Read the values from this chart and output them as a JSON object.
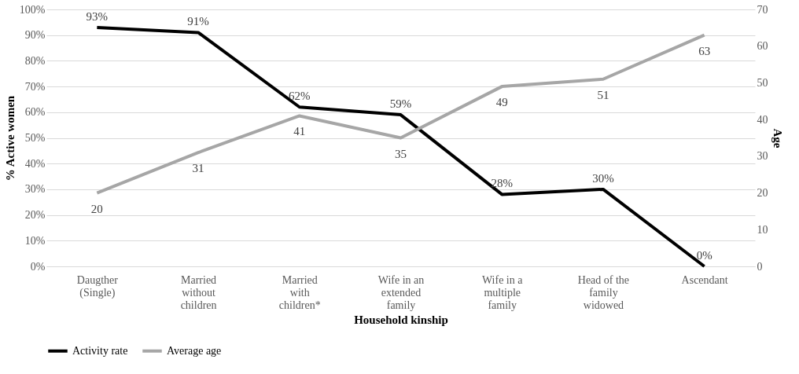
{
  "chart_data": {
    "type": "line",
    "xlabel": "Household kinship",
    "ylabel": "% Active women",
    "y2label": "Age",
    "categories": [
      "Daugther (Single)",
      "Married without children",
      "Married with children*",
      "Wife in an extended family",
      "Wife in a multiple family",
      "Head of the family widowed",
      "Ascendant"
    ],
    "series": [
      {
        "name": "Activity rate",
        "color": "#000000",
        "values": [
          93,
          91,
          62,
          59,
          28,
          30,
          0
        ],
        "value_labels": [
          "93%",
          "91%",
          "62%",
          "59%",
          "28%",
          "30%",
          "0%"
        ]
      },
      {
        "name": "Average age",
        "color": "#a6a6a6",
        "values": [
          20,
          31,
          41,
          35,
          49,
          51,
          63
        ],
        "axis": "y2"
      }
    ],
    "ylim": [
      0,
      100
    ],
    "yticks": [
      {
        "value": 0,
        "label": "0%"
      },
      {
        "value": 10,
        "label": "10%"
      },
      {
        "value": 20,
        "label": "20%"
      },
      {
        "value": 30,
        "label": "30%"
      },
      {
        "value": 40,
        "label": "40%"
      },
      {
        "value": 50,
        "label": "50%"
      },
      {
        "value": 60,
        "label": "60%"
      },
      {
        "value": 70,
        "label": "70%"
      },
      {
        "value": 80,
        "label": "80%"
      },
      {
        "value": 90,
        "label": "90%"
      },
      {
        "value": 100,
        "label": "100%"
      }
    ],
    "y2lim": [
      0,
      70
    ],
    "y2ticks": [
      0,
      10,
      20,
      30,
      40,
      50,
      60,
      70
    ],
    "data_labels": true,
    "grid": "y",
    "legend": "bottom",
    "marker": "none",
    "line_style": "solid"
  }
}
